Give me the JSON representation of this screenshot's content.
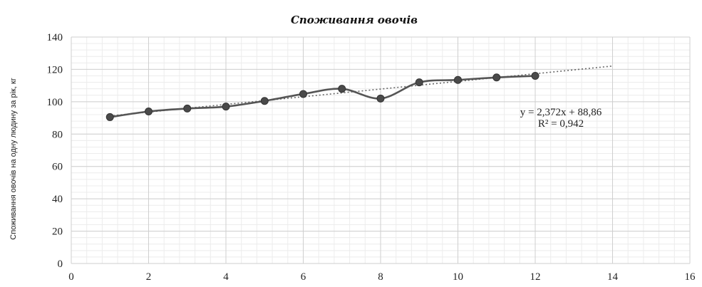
{
  "chart_data": {
    "type": "scatter",
    "title": "Споживання овочів",
    "xlabel": "",
    "ylabel": "Споживання овочів на одну людину за рік, кг",
    "xlim": [
      0,
      16
    ],
    "ylim": [
      0,
      140
    ],
    "x_ticks": [
      0,
      2,
      4,
      6,
      8,
      10,
      12,
      14,
      16
    ],
    "y_ticks": [
      0,
      20,
      40,
      60,
      80,
      100,
      120,
      140
    ],
    "grid": true,
    "series": [
      {
        "x": [
          1,
          2,
          3,
          4,
          5,
          6,
          7,
          8,
          9,
          10,
          11,
          12
        ],
        "values": [
          90.5,
          94,
          95.8,
          97,
          100.5,
          104.8,
          108,
          102,
          112,
          113.5,
          115,
          116
        ],
        "marker": "circle",
        "line": "smooth",
        "color": "#555555"
      }
    ],
    "trendline": {
      "type": "linear",
      "slope": 2.372,
      "intercept": 88.86,
      "x_range": [
        1,
        14
      ],
      "style": "dotted",
      "equation": "y = 2,372x + 88,86",
      "r_squared": "R² = 0,942"
    }
  }
}
